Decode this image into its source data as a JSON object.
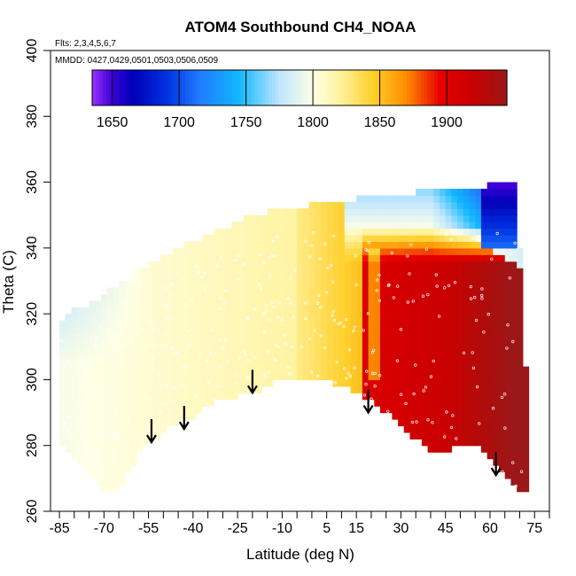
{
  "chart_data": {
    "type": "heatmap",
    "title": "ATOM4 Southbound CH4_NOAA",
    "subtitle_flights": "Flts: 2,3,4,5,6,7",
    "subtitle_dates": "MMDD: 0427,0429,0501,0503,0506,0509",
    "xlabel": "Latitude (deg N)",
    "ylabel": "Theta (C)",
    "xlim": [
      -88,
      80
    ],
    "ylim": [
      260,
      400
    ],
    "x_ticks": [
      -85,
      -70,
      -55,
      -40,
      -25,
      -10,
      5,
      15,
      30,
      45,
      60,
      75
    ],
    "x_minor_ticks": [
      -80,
      -75,
      -65,
      -60,
      -50,
      -45,
      -35,
      -30,
      -20,
      -15,
      -5,
      0,
      10,
      20,
      25,
      35,
      40,
      50,
      55,
      65,
      70,
      80
    ],
    "y_ticks": [
      260,
      280,
      300,
      320,
      340,
      360,
      380,
      400
    ],
    "colorbar": {
      "ticks": [
        1650,
        1700,
        1750,
        1800,
        1850,
        1900
      ],
      "range": [
        1635,
        1945
      ],
      "stops": [
        {
          "v": 1635,
          "c": "#9b30ff"
        },
        {
          "v": 1650,
          "c": "#3a00d6"
        },
        {
          "v": 1665,
          "c": "#0000b8"
        },
        {
          "v": 1690,
          "c": "#0030e0"
        },
        {
          "v": 1715,
          "c": "#1f7bff"
        },
        {
          "v": 1745,
          "c": "#12b8ff"
        },
        {
          "v": 1775,
          "c": "#bfe6ff"
        },
        {
          "v": 1800,
          "c": "#ffffe6"
        },
        {
          "v": 1820,
          "c": "#fff3a0"
        },
        {
          "v": 1845,
          "c": "#ffcf2a"
        },
        {
          "v": 1870,
          "c": "#ff8c00"
        },
        {
          "v": 1895,
          "c": "#e80000"
        },
        {
          "v": 1920,
          "c": "#c80000"
        },
        {
          "v": 1945,
          "c": "#9a1818"
        }
      ]
    },
    "arrows_lat": [
      -54,
      -43,
      -20,
      19,
      62
    ],
    "arrows_theta": [
      286,
      290,
      301,
      295,
      276
    ],
    "floor_profile": [
      {
        "lat": -85,
        "theta": 280
      },
      {
        "lat": -80,
        "theta": 276
      },
      {
        "lat": -75,
        "theta": 271
      },
      {
        "lat": -70,
        "theta": 266
      },
      {
        "lat": -65,
        "theta": 266
      },
      {
        "lat": -60,
        "theta": 275
      },
      {
        "lat": -55,
        "theta": 281
      },
      {
        "lat": -50,
        "theta": 284
      },
      {
        "lat": -45,
        "theta": 287
      },
      {
        "lat": -40,
        "theta": 289
      },
      {
        "lat": -35,
        "theta": 292
      },
      {
        "lat": -30,
        "theta": 294
      },
      {
        "lat": -25,
        "theta": 295
      },
      {
        "lat": -20,
        "theta": 296
      },
      {
        "lat": -15,
        "theta": 298
      },
      {
        "lat": -10,
        "theta": 300
      },
      {
        "lat": -5,
        "theta": 299
      },
      {
        "lat": 0,
        "theta": 300
      },
      {
        "lat": 5,
        "theta": 300
      },
      {
        "lat": 10,
        "theta": 298
      },
      {
        "lat": 15,
        "theta": 296
      },
      {
        "lat": 20,
        "theta": 294
      },
      {
        "lat": 25,
        "theta": 290
      },
      {
        "lat": 30,
        "theta": 286
      },
      {
        "lat": 35,
        "theta": 282
      },
      {
        "lat": 40,
        "theta": 278
      },
      {
        "lat": 45,
        "theta": 278
      },
      {
        "lat": 50,
        "theta": 281
      },
      {
        "lat": 55,
        "theta": 281
      },
      {
        "lat": 60,
        "theta": 276
      },
      {
        "lat": 65,
        "theta": 271
      },
      {
        "lat": 70,
        "theta": 266
      },
      {
        "lat": 72,
        "theta": 266
      }
    ],
    "top_profile": [
      {
        "lat": -85,
        "theta": 318
      },
      {
        "lat": -80,
        "theta": 321
      },
      {
        "lat": -75,
        "theta": 323
      },
      {
        "lat": -70,
        "theta": 326
      },
      {
        "lat": -65,
        "theta": 329
      },
      {
        "lat": -60,
        "theta": 332
      },
      {
        "lat": -55,
        "theta": 335
      },
      {
        "lat": -50,
        "theta": 338
      },
      {
        "lat": -45,
        "theta": 340
      },
      {
        "lat": -40,
        "theta": 342
      },
      {
        "lat": -35,
        "theta": 344
      },
      {
        "lat": -30,
        "theta": 346
      },
      {
        "lat": -25,
        "theta": 348
      },
      {
        "lat": -20,
        "theta": 350
      },
      {
        "lat": -15,
        "theta": 351
      },
      {
        "lat": -10,
        "theta": 352
      },
      {
        "lat": -5,
        "theta": 352
      },
      {
        "lat": 0,
        "theta": 353
      },
      {
        "lat": 5,
        "theta": 353
      },
      {
        "lat": 10,
        "theta": 354
      },
      {
        "lat": 15,
        "theta": 355
      },
      {
        "lat": 20,
        "theta": 355
      },
      {
        "lat": 25,
        "theta": 356
      },
      {
        "lat": 30,
        "theta": 356
      },
      {
        "lat": 35,
        "theta": 357
      },
      {
        "lat": 40,
        "theta": 357
      },
      {
        "lat": 45,
        "theta": 357
      },
      {
        "lat": 50,
        "theta": 358
      },
      {
        "lat": 55,
        "theta": 358
      },
      {
        "lat": 60,
        "theta": 359
      },
      {
        "lat": 65,
        "theta": 360
      },
      {
        "lat": 68,
        "theta": 360
      },
      {
        "lat": 70,
        "theta": 340
      },
      {
        "lat": 72,
        "theta": 303
      }
    ]
  }
}
